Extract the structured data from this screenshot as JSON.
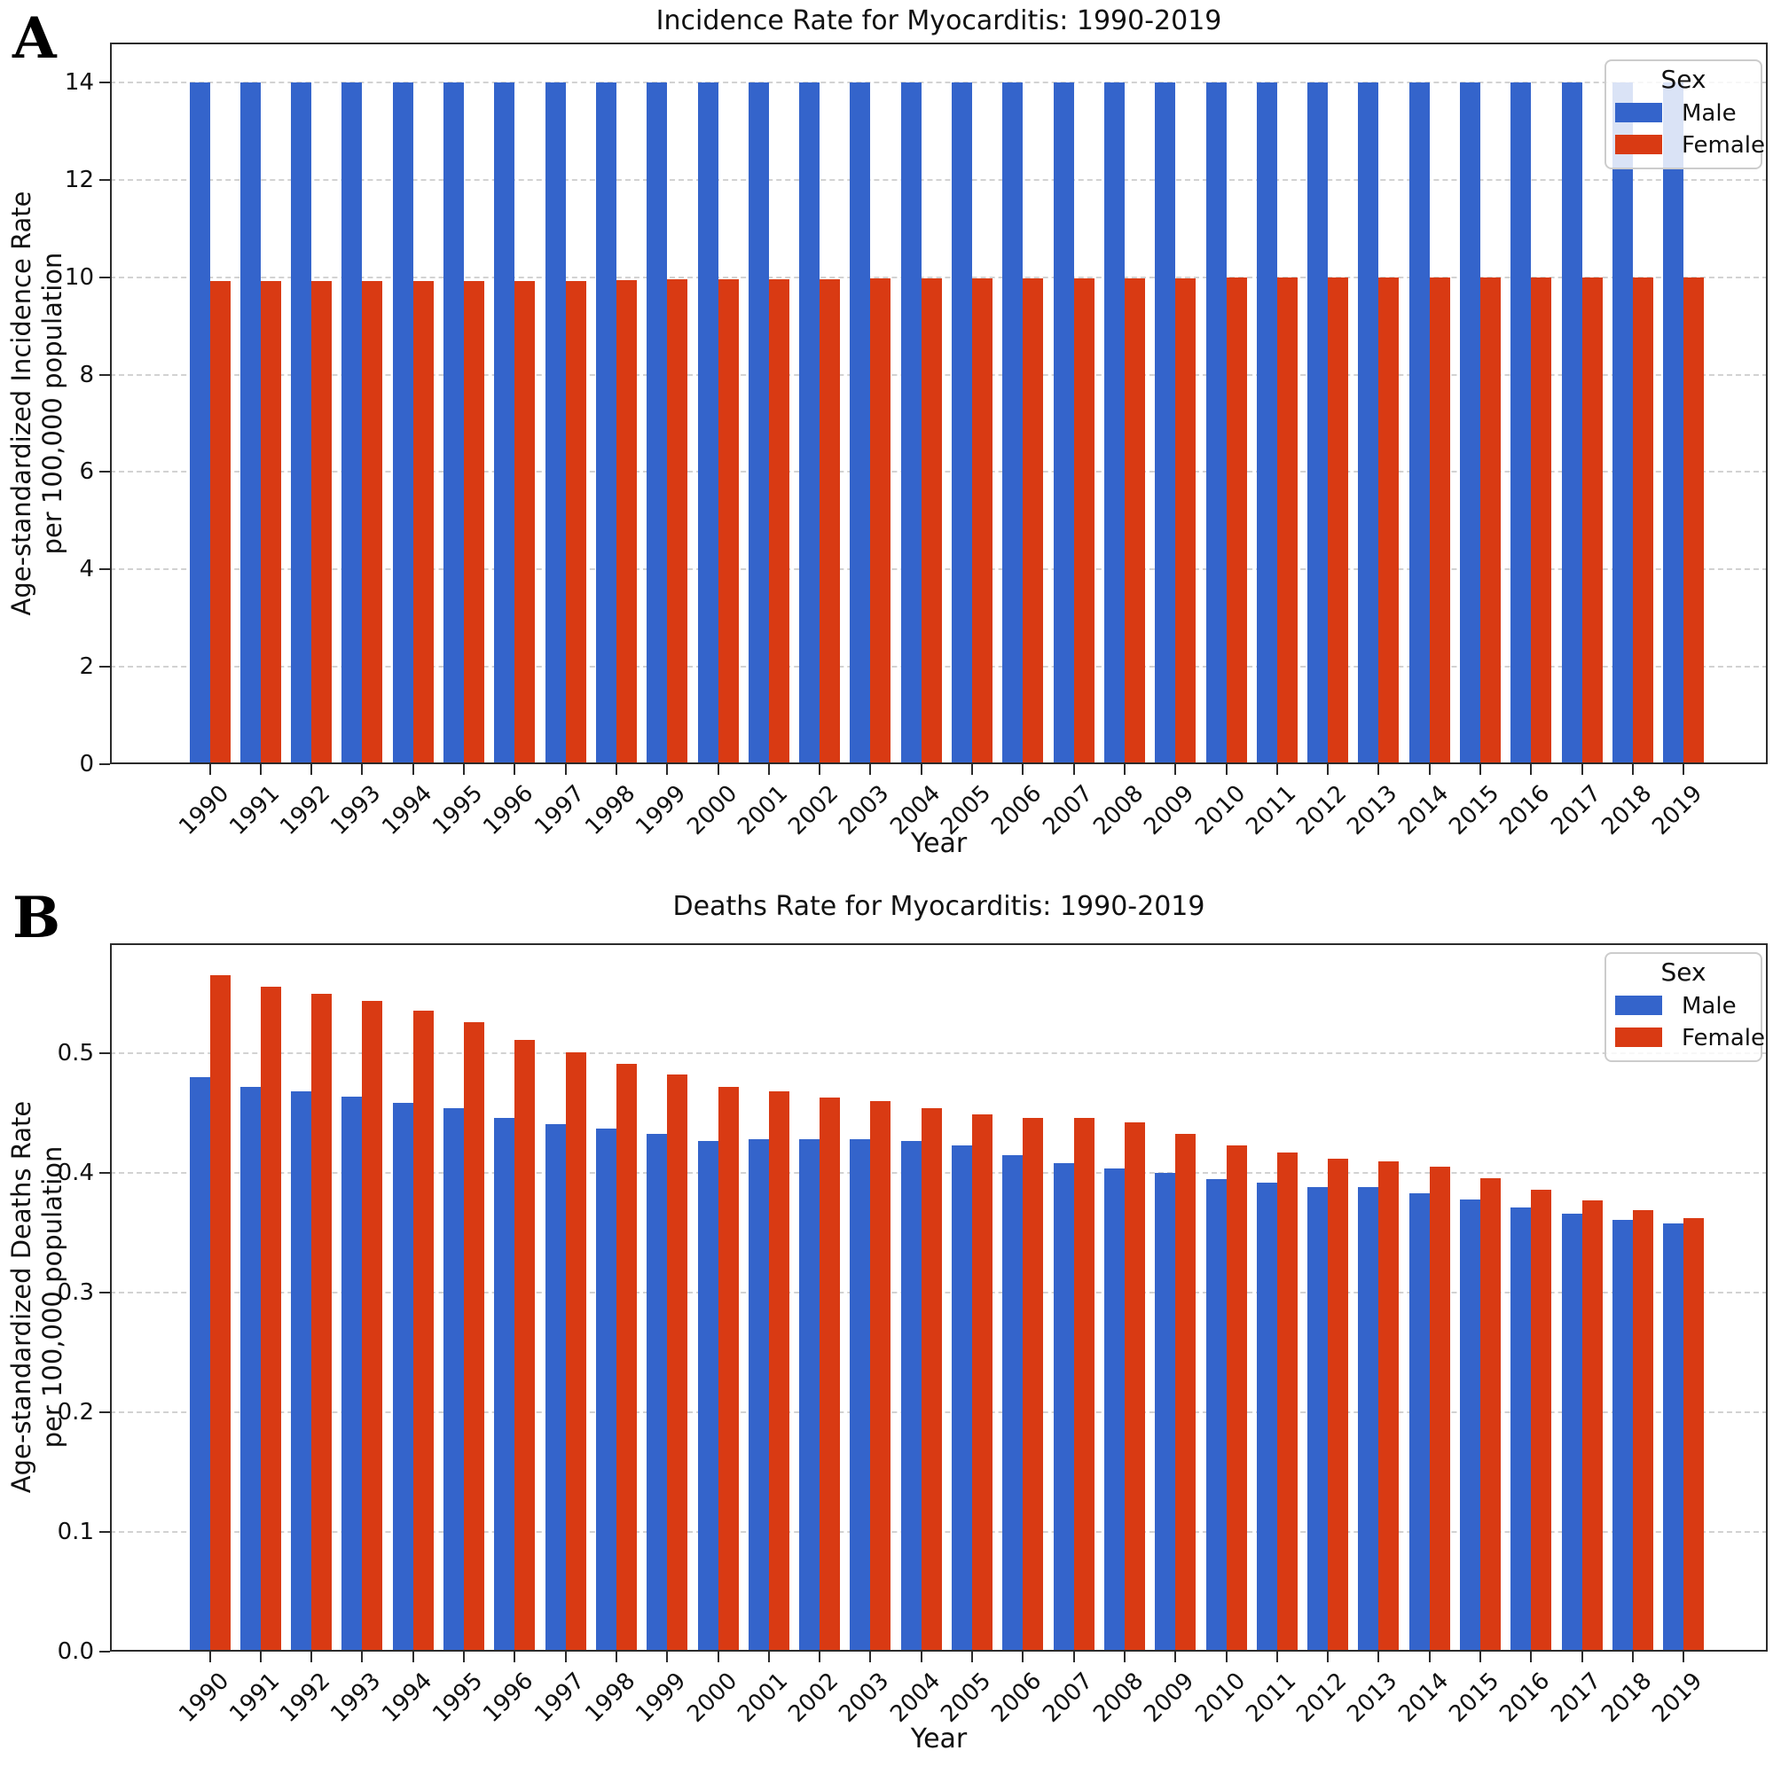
{
  "figure": {
    "panel_a_letter": "A",
    "panel_b_letter": "B",
    "colors": {
      "male": "#3464CB",
      "female": "#D93A13",
      "grid": "#d2d2d2",
      "spine": "#2b2b2b"
    }
  },
  "chart_data": [
    {
      "id": "incidence",
      "type": "bar",
      "title": "Incidence Rate for Myocarditis: 1990-2019",
      "xlabel": "Year",
      "ylabel_line1": "Age-standardized Incidence Rate",
      "ylabel_line2": "per 100,000 population",
      "legend": {
        "title": "Sex",
        "position": "upper right"
      },
      "grid": true,
      "ylim": [
        0,
        14.82
      ],
      "yticks": [
        0,
        2,
        4,
        6,
        8,
        10,
        12,
        14
      ],
      "ytick_labels": [
        "0",
        "2",
        "4",
        "6",
        "8",
        "10",
        "12",
        "14"
      ],
      "categories": [
        "1990",
        "1991",
        "1992",
        "1993",
        "1994",
        "1995",
        "1996",
        "1997",
        "1998",
        "1999",
        "2000",
        "2001",
        "2002",
        "2003",
        "2004",
        "2005",
        "2006",
        "2007",
        "2008",
        "2009",
        "2010",
        "2011",
        "2012",
        "2013",
        "2014",
        "2015",
        "2016",
        "2017",
        "2018",
        "2019"
      ],
      "series": [
        {
          "name": "Male",
          "color_key": "male",
          "values": [
            14.0,
            14.0,
            14.0,
            14.0,
            14.0,
            14.0,
            14.0,
            14.0,
            14.0,
            14.0,
            14.0,
            14.0,
            14.0,
            14.0,
            14.0,
            14.0,
            14.0,
            14.0,
            14.0,
            14.0,
            14.0,
            14.0,
            14.0,
            14.0,
            14.0,
            14.0,
            14.0,
            14.0,
            14.0,
            14.0
          ]
        },
        {
          "name": "Female",
          "color_key": "female",
          "values": [
            9.93,
            9.92,
            9.92,
            9.92,
            9.92,
            9.92,
            9.92,
            9.93,
            9.94,
            9.95,
            9.96,
            9.96,
            9.96,
            9.97,
            9.97,
            9.98,
            9.98,
            9.98,
            9.98,
            9.98,
            9.99,
            9.99,
            9.99,
            9.99,
            9.99,
            10.0,
            10.0,
            10.0,
            10.0,
            9.99
          ]
        }
      ]
    },
    {
      "id": "deaths",
      "type": "bar",
      "title": "Deaths Rate for Myocarditis: 1990-2019",
      "xlabel": "Year",
      "ylabel_line1": "Age-standardized Deaths Rate",
      "ylabel_line2": "per 100,000 population",
      "legend": {
        "title": "Sex",
        "position": "upper right"
      },
      "grid": true,
      "ylim": [
        0,
        0.592
      ],
      "yticks": [
        0.0,
        0.1,
        0.2,
        0.3,
        0.4,
        0.5
      ],
      "ytick_labels": [
        "0.0",
        "0.1",
        "0.2",
        "0.3",
        "0.4",
        "0.5"
      ],
      "categories": [
        "1990",
        "1991",
        "1992",
        "1993",
        "1994",
        "1995",
        "1996",
        "1997",
        "1998",
        "1999",
        "2000",
        "2001",
        "2002",
        "2003",
        "2004",
        "2005",
        "2006",
        "2007",
        "2008",
        "2009",
        "2010",
        "2011",
        "2012",
        "2013",
        "2014",
        "2015",
        "2016",
        "2017",
        "2018",
        "2019"
      ],
      "series": [
        {
          "name": "Male",
          "color_key": "male",
          "values": [
            0.48,
            0.472,
            0.468,
            0.464,
            0.459,
            0.454,
            0.446,
            0.441,
            0.437,
            0.433,
            0.427,
            0.428,
            0.428,
            0.428,
            0.427,
            0.423,
            0.415,
            0.408,
            0.404,
            0.4,
            0.395,
            0.392,
            0.388,
            0.388,
            0.383,
            0.378,
            0.371,
            0.366,
            0.361,
            0.358
          ]
        },
        {
          "name": "Female",
          "color_key": "female",
          "values": [
            0.565,
            0.556,
            0.55,
            0.544,
            0.536,
            0.526,
            0.511,
            0.501,
            0.491,
            0.482,
            0.472,
            0.468,
            0.463,
            0.46,
            0.454,
            0.449,
            0.446,
            0.446,
            0.442,
            0.433,
            0.423,
            0.417,
            0.412,
            0.41,
            0.405,
            0.396,
            0.386,
            0.377,
            0.369,
            0.362
          ]
        }
      ]
    }
  ]
}
